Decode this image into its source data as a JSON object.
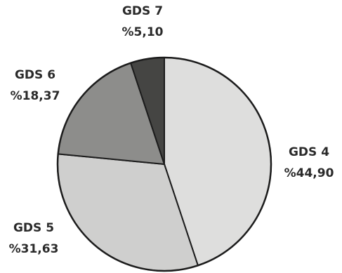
{
  "chart_data": {
    "type": "pie",
    "title": "",
    "slices": [
      {
        "label": "GDS 4",
        "value": 44.9,
        "value_label": "%44,90",
        "color": "#dededd"
      },
      {
        "label": "GDS 5",
        "value": 31.63,
        "value_label": "%31,63",
        "color": "#cfcfce"
      },
      {
        "label": "GDS 6",
        "value": 18.37,
        "value_label": "%18,37",
        "color": "#8d8d8b"
      },
      {
        "label": "GDS 7",
        "value": 5.1,
        "value_label": "%5,10",
        "color": "#454543"
      }
    ]
  }
}
